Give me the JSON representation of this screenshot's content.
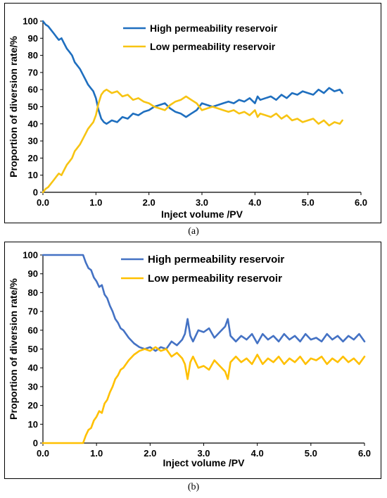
{
  "captions": {
    "a": "(a)",
    "b": "(b)"
  },
  "chart_data": [
    {
      "type": "line",
      "title": "",
      "xlabel": "Inject volume /PV",
      "ylabel": "Proportion of diversion rate/%",
      "xlim": [
        0,
        6
      ],
      "ylim": [
        0,
        100
      ],
      "xticks": [
        "0.0",
        "1.0",
        "2.0",
        "3.0",
        "4.0",
        "5.0",
        "6.0"
      ],
      "yticks": [
        "0",
        "10",
        "20",
        "30",
        "40",
        "50",
        "60",
        "70",
        "80",
        "90",
        "100"
      ],
      "grid": false,
      "legend_position": "top-center",
      "series": [
        {
          "name": "High permeability reservoir",
          "color": "#1f6fbf",
          "x": [
            0.0,
            0.05,
            0.1,
            0.15,
            0.2,
            0.25,
            0.3,
            0.35,
            0.4,
            0.45,
            0.5,
            0.55,
            0.6,
            0.65,
            0.7,
            0.75,
            0.8,
            0.85,
            0.9,
            0.95,
            1.0,
            1.05,
            1.1,
            1.15,
            1.2,
            1.3,
            1.4,
            1.5,
            1.6,
            1.7,
            1.8,
            1.9,
            2.0,
            2.1,
            2.2,
            2.3,
            2.4,
            2.5,
            2.6,
            2.7,
            2.8,
            2.9,
            3.0,
            3.1,
            3.2,
            3.3,
            3.4,
            3.5,
            3.6,
            3.7,
            3.8,
            3.9,
            4.0,
            4.05,
            4.1,
            4.2,
            4.3,
            4.4,
            4.5,
            4.6,
            4.7,
            4.8,
            4.9,
            5.0,
            5.1,
            5.2,
            5.3,
            5.4,
            5.5,
            5.6,
            5.65
          ],
          "y": [
            100,
            98,
            97,
            95,
            93,
            91,
            89,
            90,
            87,
            84,
            82,
            80,
            76,
            74,
            72,
            69,
            66,
            63,
            61,
            59,
            55,
            48,
            43,
            41,
            40,
            42,
            41,
            44,
            43,
            46,
            45,
            47,
            48,
            50,
            51,
            52,
            49,
            47,
            46,
            44,
            46,
            48,
            52,
            51,
            50,
            51,
            52,
            53,
            52,
            54,
            53,
            55,
            52,
            56,
            54,
            55,
            56,
            54,
            57,
            55,
            58,
            57,
            59,
            58,
            57,
            60,
            58,
            61,
            59,
            60,
            58
          ]
        },
        {
          "name": "Low permeability reservoir",
          "color": "#f7c413",
          "x": [
            0.0,
            0.05,
            0.1,
            0.15,
            0.2,
            0.25,
            0.3,
            0.35,
            0.4,
            0.45,
            0.5,
            0.55,
            0.6,
            0.65,
            0.7,
            0.75,
            0.8,
            0.85,
            0.9,
            0.95,
            1.0,
            1.05,
            1.1,
            1.15,
            1.2,
            1.3,
            1.4,
            1.5,
            1.6,
            1.7,
            1.8,
            1.9,
            2.0,
            2.1,
            2.2,
            2.3,
            2.4,
            2.5,
            2.6,
            2.7,
            2.8,
            2.9,
            3.0,
            3.1,
            3.2,
            3.3,
            3.4,
            3.5,
            3.6,
            3.7,
            3.8,
            3.9,
            4.0,
            4.05,
            4.1,
            4.2,
            4.3,
            4.4,
            4.5,
            4.6,
            4.7,
            4.8,
            4.9,
            5.0,
            5.1,
            5.2,
            5.3,
            5.4,
            5.5,
            5.6,
            5.65
          ],
          "y": [
            0,
            2,
            3,
            5,
            7,
            9,
            11,
            10,
            13,
            16,
            18,
            20,
            24,
            26,
            28,
            31,
            34,
            37,
            39,
            41,
            45,
            52,
            57,
            59,
            60,
            58,
            59,
            56,
            57,
            54,
            55,
            53,
            52,
            50,
            49,
            48,
            51,
            53,
            54,
            56,
            54,
            52,
            48,
            49,
            50,
            49,
            48,
            47,
            48,
            46,
            47,
            45,
            48,
            44,
            46,
            45,
            44,
            46,
            43,
            45,
            42,
            43,
            41,
            42,
            43,
            40,
            42,
            39,
            41,
            40,
            42
          ]
        }
      ]
    },
    {
      "type": "line",
      "title": "",
      "xlabel": "Inject volume /PV",
      "ylabel": "Proportion of diversion rate/%",
      "xlim": [
        0,
        6
      ],
      "ylim": [
        0,
        100
      ],
      "xticks": [
        "0.0",
        "1.0",
        "2.0",
        "3.0",
        "4.0",
        "5.0",
        "6.0"
      ],
      "yticks": [
        "0",
        "10",
        "20",
        "30",
        "40",
        "50",
        "60",
        "70",
        "80",
        "90",
        "100"
      ],
      "grid": false,
      "legend_position": "top-center",
      "series": [
        {
          "name": "High permeability reservoir",
          "color": "#4472c4",
          "x": [
            0.0,
            0.75,
            0.8,
            0.85,
            0.9,
            0.95,
            1.0,
            1.05,
            1.1,
            1.15,
            1.2,
            1.25,
            1.3,
            1.35,
            1.4,
            1.45,
            1.5,
            1.6,
            1.7,
            1.8,
            1.9,
            2.0,
            2.1,
            2.2,
            2.3,
            2.4,
            2.5,
            2.6,
            2.65,
            2.7,
            2.75,
            2.8,
            2.9,
            3.0,
            3.1,
            3.2,
            3.3,
            3.4,
            3.45,
            3.5,
            3.6,
            3.7,
            3.8,
            3.9,
            4.0,
            4.1,
            4.2,
            4.3,
            4.4,
            4.5,
            4.6,
            4.7,
            4.8,
            4.9,
            5.0,
            5.1,
            5.2,
            5.3,
            5.4,
            5.5,
            5.6,
            5.7,
            5.8,
            5.9,
            6.0
          ],
          "y": [
            100,
            100,
            96,
            93,
            92,
            88,
            86,
            83,
            84,
            79,
            77,
            73,
            70,
            66,
            64,
            61,
            60,
            56,
            53,
            51,
            50,
            51,
            49,
            51,
            50,
            54,
            52,
            55,
            58,
            66,
            57,
            54,
            60,
            59,
            61,
            56,
            59,
            62,
            66,
            57,
            54,
            57,
            55,
            58,
            53,
            58,
            55,
            57,
            54,
            58,
            55,
            57,
            54,
            58,
            55,
            56,
            54,
            58,
            55,
            57,
            54,
            57,
            55,
            58,
            54
          ]
        },
        {
          "name": "Low permeability reservoir",
          "color": "#ffc000",
          "x": [
            0.0,
            0.75,
            0.8,
            0.85,
            0.9,
            0.95,
            1.0,
            1.05,
            1.1,
            1.15,
            1.2,
            1.25,
            1.3,
            1.35,
            1.4,
            1.45,
            1.5,
            1.6,
            1.7,
            1.8,
            1.9,
            2.0,
            2.1,
            2.2,
            2.3,
            2.4,
            2.5,
            2.6,
            2.65,
            2.7,
            2.75,
            2.8,
            2.9,
            3.0,
            3.1,
            3.2,
            3.3,
            3.4,
            3.45,
            3.5,
            3.6,
            3.7,
            3.8,
            3.9,
            4.0,
            4.1,
            4.2,
            4.3,
            4.4,
            4.5,
            4.6,
            4.7,
            4.8,
            4.9,
            5.0,
            5.1,
            5.2,
            5.3,
            5.4,
            5.5,
            5.6,
            5.7,
            5.8,
            5.9,
            6.0
          ],
          "y": [
            0,
            0,
            4,
            7,
            8,
            12,
            14,
            17,
            16,
            21,
            23,
            27,
            30,
            34,
            36,
            39,
            40,
            44,
            47,
            49,
            50,
            49,
            51,
            49,
            50,
            46,
            48,
            45,
            42,
            34,
            43,
            46,
            40,
            41,
            39,
            44,
            41,
            38,
            34,
            43,
            46,
            43,
            45,
            42,
            47,
            42,
            45,
            43,
            46,
            42,
            45,
            43,
            46,
            42,
            45,
            44,
            46,
            42,
            45,
            43,
            46,
            43,
            45,
            42,
            46
          ]
        }
      ]
    }
  ]
}
